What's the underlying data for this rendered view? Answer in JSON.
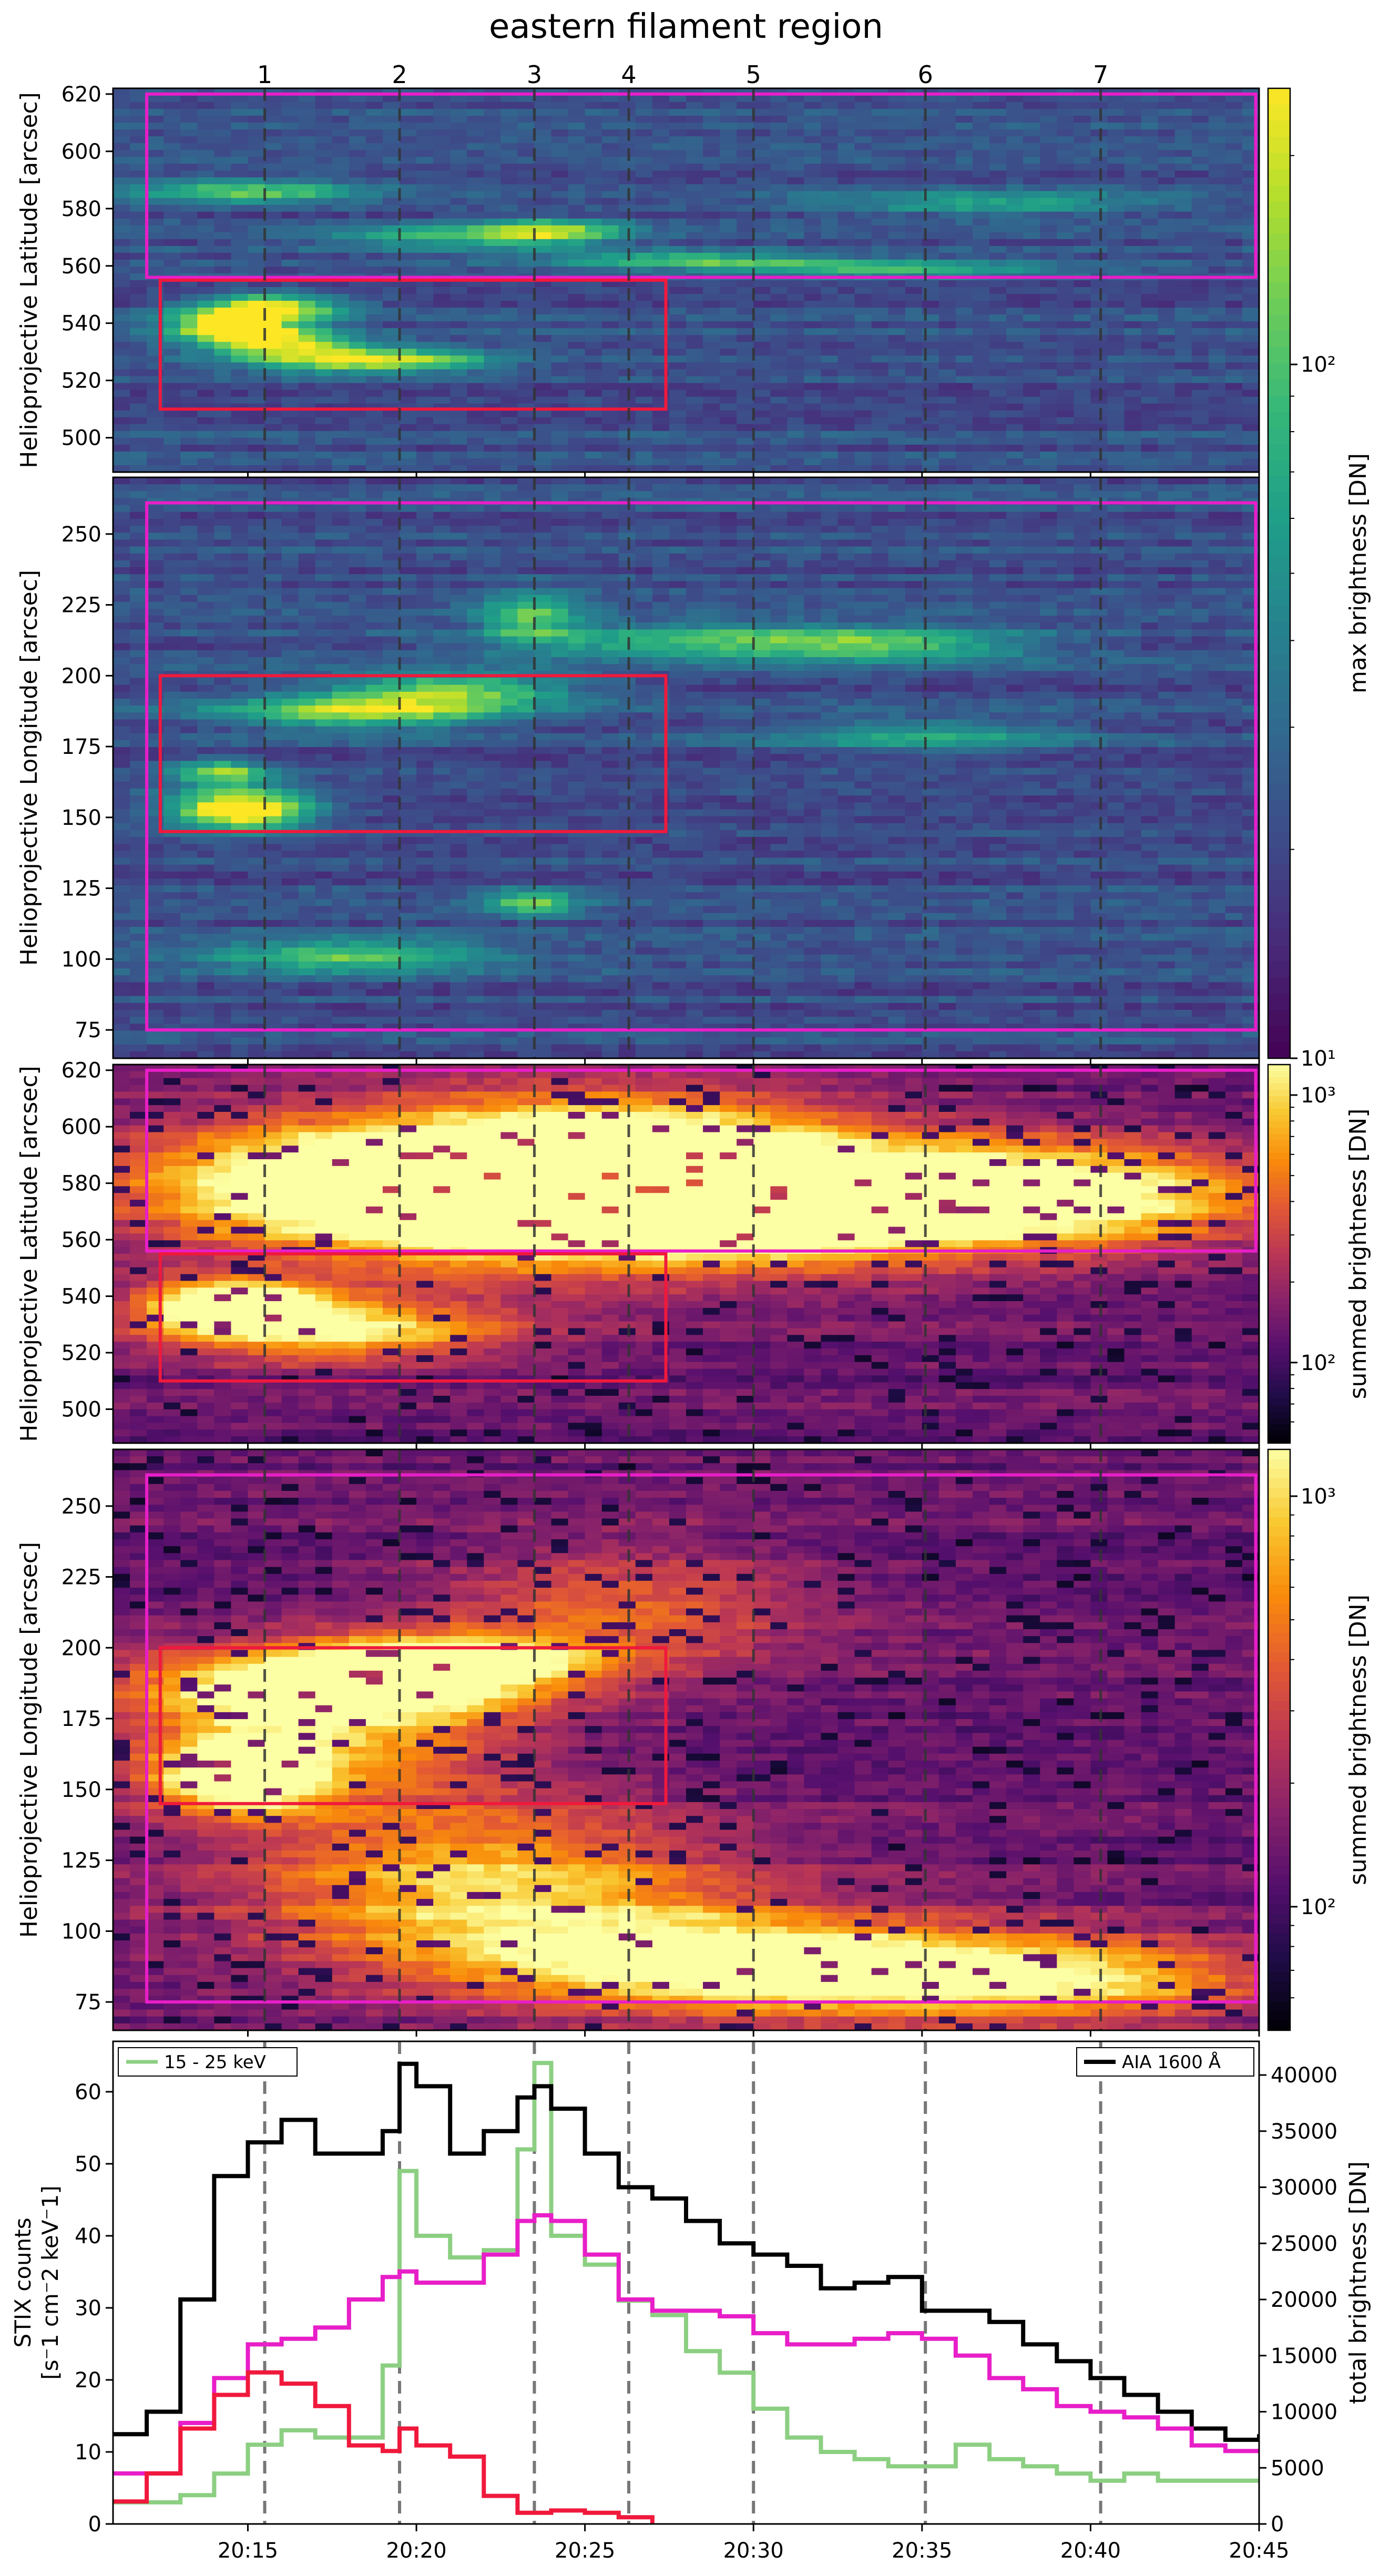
{
  "figure": {
    "title": "eastern filament region"
  },
  "markers": {
    "labels": [
      "1",
      "2",
      "3",
      "4",
      "5",
      "6",
      "7"
    ],
    "times_min": [
      15.5,
      19.5,
      23.5,
      26.3,
      30.0,
      35.1,
      40.3
    ]
  },
  "time_axis": {
    "xlim_min": [
      11.0,
      45.0
    ],
    "tick_minutes": [
      15,
      20,
      25,
      30,
      35,
      40,
      45
    ],
    "tick_labels": [
      "20:15",
      "20:20",
      "20:25",
      "20:30",
      "20:35",
      "20:40",
      "20:45"
    ]
  },
  "panels": [
    {
      "ylabel": "Helioprojective Latitude [arcsec]",
      "ylim": [
        488,
        622
      ],
      "ticks": [
        500,
        520,
        540,
        560,
        580,
        600,
        620
      ],
      "colormap": "viridis",
      "colorbar": {
        "label": "max brightness [DN]",
        "scale": "log",
        "range": [
          10,
          250
        ],
        "tick_labels": [
          "10¹",
          "10²"
        ],
        "tick_values": [
          10,
          100
        ]
      },
      "boxes": [
        {
          "color": "#e81ec8",
          "t": [
            12.0,
            44.9
          ],
          "y": [
            556,
            620
          ]
        },
        {
          "color": "#f0193c",
          "t": [
            12.4,
            27.4
          ],
          "y": [
            510,
            555
          ]
        }
      ],
      "features": [
        {
          "t": 14.6,
          "y": 539,
          "w": 1.3,
          "h": 4,
          "v": 1.0
        },
        {
          "t": 15.8,
          "y": 546,
          "w": 1.5,
          "h": 3,
          "v": 0.7
        },
        {
          "t": 18.5,
          "y": 527,
          "w": 2.5,
          "h": 3,
          "v": 0.75
        },
        {
          "t": 16.2,
          "y": 533,
          "w": 1.6,
          "h": 3,
          "v": 0.6
        },
        {
          "t": 15.0,
          "y": 586,
          "w": 2.5,
          "h": 3,
          "v": 0.5
        },
        {
          "t": 24.0,
          "y": 572,
          "w": 1.5,
          "h": 3,
          "v": 0.55
        },
        {
          "t": 28.0,
          "y": 562,
          "w": 3.0,
          "h": 2,
          "v": 0.45
        },
        {
          "t": 34.0,
          "y": 559,
          "w": 3.5,
          "h": 2,
          "v": 0.45
        },
        {
          "t": 37.0,
          "y": 582,
          "w": 3.5,
          "h": 3,
          "v": 0.35
        },
        {
          "t": 21.0,
          "y": 570,
          "w": 2.5,
          "h": 3,
          "v": 0.4
        }
      ]
    },
    {
      "ylabel": "Helioprojective Longitude [arcsec]",
      "ylim": [
        65,
        270
      ],
      "ticks": [
        75,
        100,
        125,
        150,
        175,
        200,
        225,
        250
      ],
      "colormap": "viridis",
      "colorbar": null,
      "boxes": [
        {
          "color": "#e81ec8",
          "t": [
            12.0,
            44.9
          ],
          "y": [
            75,
            261
          ]
        },
        {
          "color": "#f0193c",
          "t": [
            12.4,
            27.4
          ],
          "y": [
            145,
            200
          ]
        }
      ],
      "features": [
        {
          "t": 14.8,
          "y": 153,
          "w": 1.4,
          "h": 5,
          "v": 1.0
        },
        {
          "t": 14.2,
          "y": 166,
          "w": 1.0,
          "h": 3,
          "v": 0.6
        },
        {
          "t": 18.5,
          "y": 187,
          "w": 3.0,
          "h": 4,
          "v": 0.65
        },
        {
          "t": 21.0,
          "y": 195,
          "w": 2.5,
          "h": 4,
          "v": 0.55
        },
        {
          "t": 28.0,
          "y": 212,
          "w": 4.0,
          "h": 4,
          "v": 0.45
        },
        {
          "t": 34.0,
          "y": 211,
          "w": 3.0,
          "h": 4,
          "v": 0.45
        },
        {
          "t": 18.0,
          "y": 101,
          "w": 3.0,
          "h": 4,
          "v": 0.5
        },
        {
          "t": 23.4,
          "y": 120,
          "w": 1.0,
          "h": 3,
          "v": 0.55
        },
        {
          "t": 23.4,
          "y": 221,
          "w": 1.0,
          "h": 6,
          "v": 0.5
        },
        {
          "t": 35.0,
          "y": 179,
          "w": 3.0,
          "h": 4,
          "v": 0.35
        }
      ]
    },
    {
      "ylabel": "Helioprojective Latitude [arcsec]",
      "ylim": [
        488,
        622
      ],
      "ticks": [
        500,
        520,
        540,
        560,
        580,
        600,
        620
      ],
      "colormap": "inferno",
      "colorbar": {
        "label": "summed brightness [DN]",
        "scale": "log",
        "range": [
          50,
          1300
        ],
        "tick_labels": [
          "10²",
          "10³"
        ],
        "tick_values": [
          100,
          1000
        ]
      },
      "boxes": [
        {
          "color": "#e81ec8",
          "t": [
            12.0,
            44.9
          ],
          "y": [
            556,
            620
          ]
        },
        {
          "color": "#f0193c",
          "t": [
            12.4,
            27.4
          ],
          "y": [
            510,
            555
          ]
        }
      ],
      "features": [
        {
          "t": 14.6,
          "y": 537,
          "w": 1.8,
          "h": 6,
          "v": 1.0
        },
        {
          "t": 17.5,
          "y": 528,
          "w": 3.5,
          "h": 8,
          "v": 0.65
        },
        {
          "t": 18.0,
          "y": 580,
          "w": 5.0,
          "h": 16,
          "v": 0.7
        },
        {
          "t": 23.5,
          "y": 577,
          "w": 5.0,
          "h": 18,
          "v": 0.85
        },
        {
          "t": 27.0,
          "y": 590,
          "w": 4.0,
          "h": 14,
          "v": 0.7
        },
        {
          "t": 31.0,
          "y": 570,
          "w": 4.5,
          "h": 14,
          "v": 0.6
        },
        {
          "t": 36.0,
          "y": 578,
          "w": 4.0,
          "h": 14,
          "v": 0.55
        },
        {
          "t": 41.0,
          "y": 575,
          "w": 3.5,
          "h": 12,
          "v": 0.5
        },
        {
          "t": 28.0,
          "y": 562,
          "w": 4.0,
          "h": 4,
          "v": 0.6
        }
      ]
    },
    {
      "ylabel": "Helioprojective Longitude [arcsec]",
      "ylim": [
        65,
        270
      ],
      "ticks": [
        75,
        100,
        125,
        150,
        175,
        200,
        225,
        250
      ],
      "colormap": "inferno",
      "colorbar": {
        "label": "summed brightness [DN]",
        "scale": "log",
        "range": [
          50,
          1300
        ],
        "tick_labels": [
          "10²",
          "10³"
        ],
        "tick_values": [
          100,
          1000
        ]
      },
      "boxes": [
        {
          "color": "#e81ec8",
          "t": [
            12.0,
            44.9
          ],
          "y": [
            75,
            261
          ]
        },
        {
          "color": "#f0193c",
          "t": [
            12.4,
            27.4
          ],
          "y": [
            145,
            200
          ]
        }
      ],
      "features": [
        {
          "t": 14.8,
          "y": 155,
          "w": 1.6,
          "h": 8,
          "v": 1.0
        },
        {
          "t": 18.0,
          "y": 186,
          "w": 4.0,
          "h": 8,
          "v": 0.75
        },
        {
          "t": 21.0,
          "y": 196,
          "w": 3.0,
          "h": 6,
          "v": 0.7
        },
        {
          "t": 17.0,
          "y": 170,
          "w": 4.0,
          "h": 18,
          "v": 0.55
        },
        {
          "t": 22.0,
          "y": 115,
          "w": 5.0,
          "h": 20,
          "v": 0.6
        },
        {
          "t": 28.0,
          "y": 90,
          "w": 5.0,
          "h": 12,
          "v": 0.6
        },
        {
          "t": 34.0,
          "y": 85,
          "w": 5.0,
          "h": 12,
          "v": 0.5
        },
        {
          "t": 40.0,
          "y": 83,
          "w": 4.0,
          "h": 10,
          "v": 0.45
        },
        {
          "t": 26.0,
          "y": 215,
          "w": 4.0,
          "h": 15,
          "v": 0.35
        }
      ]
    }
  ],
  "chart_data": {
    "type": "line",
    "left_ylabel": "STIX counts\n[s⁻1 cm⁻2 keV⁻1]",
    "right_ylabel": "total brightness [DN]",
    "left_ylim": [
      0,
      67
    ],
    "right_ylim": [
      0,
      43000
    ],
    "left_ticks": [
      0,
      10,
      20,
      30,
      40,
      50,
      60
    ],
    "right_ticks": [
      0,
      5000,
      10000,
      15000,
      20000,
      25000,
      30000,
      35000,
      40000
    ],
    "legend_left": {
      "label": "15 - 25 keV",
      "position": "top-left"
    },
    "legend_right": {
      "label": "AIA 1600 Å",
      "position": "top-right"
    },
    "series": [
      {
        "name": "15 - 25 keV",
        "color": "#8ccf82",
        "axis": "left",
        "x": [
          11.0,
          12,
          13,
          14,
          15,
          16,
          17,
          18,
          19,
          19.5,
          20,
          21,
          22,
          23,
          23.5,
          24,
          25,
          26,
          27,
          28,
          29,
          30,
          31,
          32,
          33,
          34,
          35,
          36,
          37,
          38,
          39,
          40,
          41,
          42,
          43,
          44,
          45
        ],
        "y": [
          3,
          3,
          4,
          7,
          11,
          13,
          12,
          12,
          22,
          49,
          40,
          37,
          38,
          52,
          64,
          40,
          36,
          31,
          29,
          24,
          21,
          16,
          12,
          10,
          9,
          8,
          8,
          11,
          9,
          8,
          7,
          6,
          7,
          6,
          6,
          6,
          6
        ]
      },
      {
        "axis": "right",
        "color": "#000000",
        "x": [
          11.0,
          12,
          13,
          14,
          15,
          16,
          17,
          18,
          19,
          19.5,
          20,
          21,
          22,
          23,
          23.5,
          24,
          25,
          26,
          27,
          28,
          29,
          30,
          31,
          32,
          33,
          34,
          35,
          36,
          37,
          38,
          39,
          40,
          41,
          42,
          43,
          44,
          45
        ],
        "y": [
          8000,
          10000,
          20000,
          31000,
          34000,
          36000,
          33000,
          33000,
          35000,
          41000,
          39000,
          33000,
          35000,
          38000,
          39000,
          37000,
          33000,
          30000,
          29000,
          27000,
          25000,
          24000,
          23000,
          21000,
          21500,
          22000,
          19000,
          19000,
          18000,
          16000,
          14500,
          13000,
          11500,
          10000,
          8500,
          7500,
          8000
        ]
      },
      {
        "axis": "right",
        "color": "#e81ec8",
        "x": [
          11.0,
          12,
          13,
          14,
          15,
          16,
          17,
          18,
          19,
          19.5,
          20,
          21,
          22,
          23,
          23.5,
          24,
          25,
          26,
          27,
          28,
          29,
          30,
          31,
          32,
          33,
          34,
          35,
          36,
          37,
          38,
          39,
          40,
          41,
          42,
          43,
          44,
          45
        ],
        "y": [
          4500,
          4500,
          9000,
          13000,
          16000,
          16500,
          17500,
          20000,
          22000,
          22500,
          21500,
          21500,
          24000,
          27000,
          27500,
          27000,
          24000,
          20000,
          19000,
          19000,
          18500,
          17000,
          16000,
          16000,
          16500,
          17000,
          16500,
          15000,
          13000,
          12000,
          10500,
          10000,
          9500,
          8500,
          7000,
          6500,
          6500
        ]
      },
      {
        "axis": "right",
        "color": "#f0193c",
        "x": [
          11.0,
          12,
          13,
          14,
          15,
          16,
          17,
          18,
          19,
          19.5,
          20,
          21,
          22,
          23,
          23.5,
          24,
          25,
          26,
          27
        ],
        "y": [
          2000,
          4500,
          8500,
          11500,
          13500,
          12500,
          10500,
          7000,
          6500,
          8500,
          7000,
          6000,
          2500,
          1000,
          1000,
          1200,
          1000,
          600,
          0
        ]
      }
    ]
  }
}
